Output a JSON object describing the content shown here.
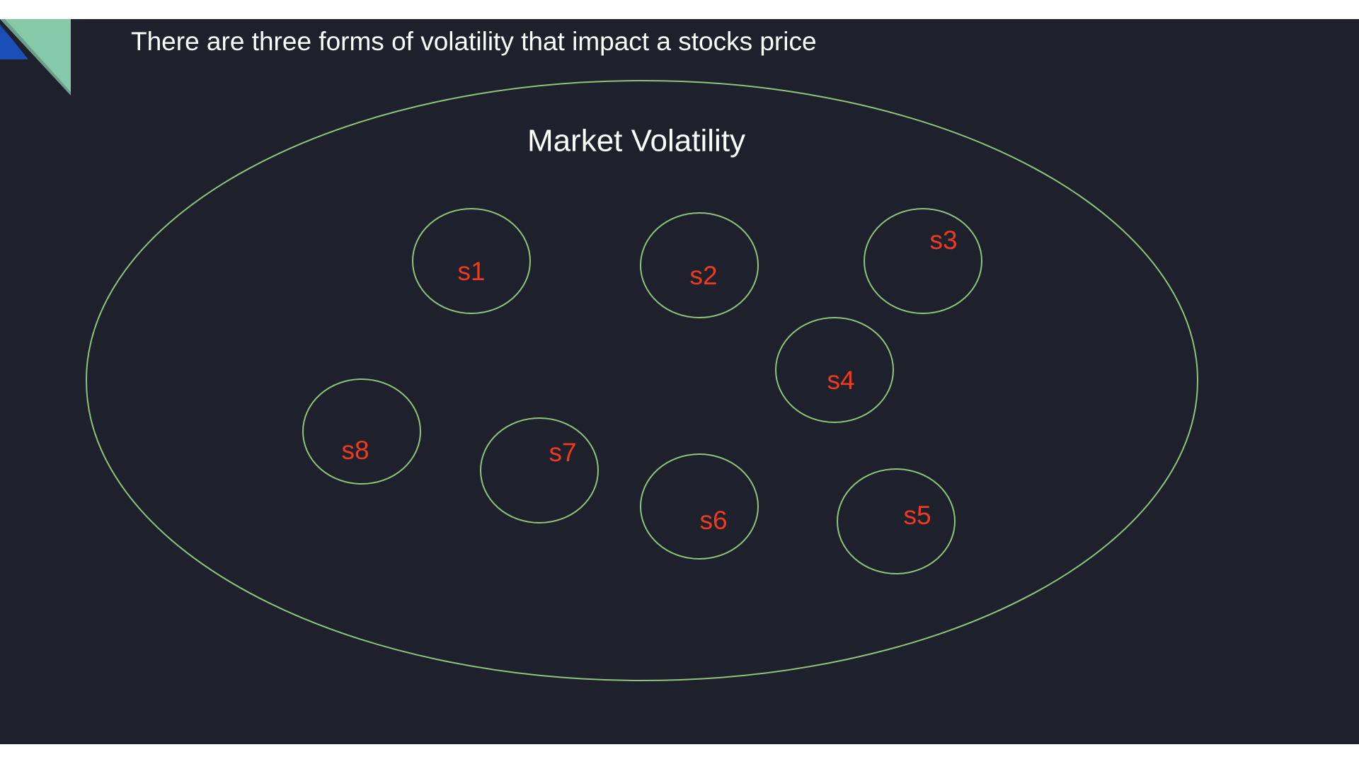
{
  "slide": {
    "title": "There are three forms of volatility that impact a stocks price"
  },
  "diagram": {
    "label": "Market Volatility",
    "nodes": [
      {
        "label": "s1"
      },
      {
        "label": "s2"
      },
      {
        "label": "s3"
      },
      {
        "label": "s4"
      },
      {
        "label": "s5"
      },
      {
        "label": "s6"
      },
      {
        "label": "s7"
      },
      {
        "label": "s8"
      }
    ]
  }
}
